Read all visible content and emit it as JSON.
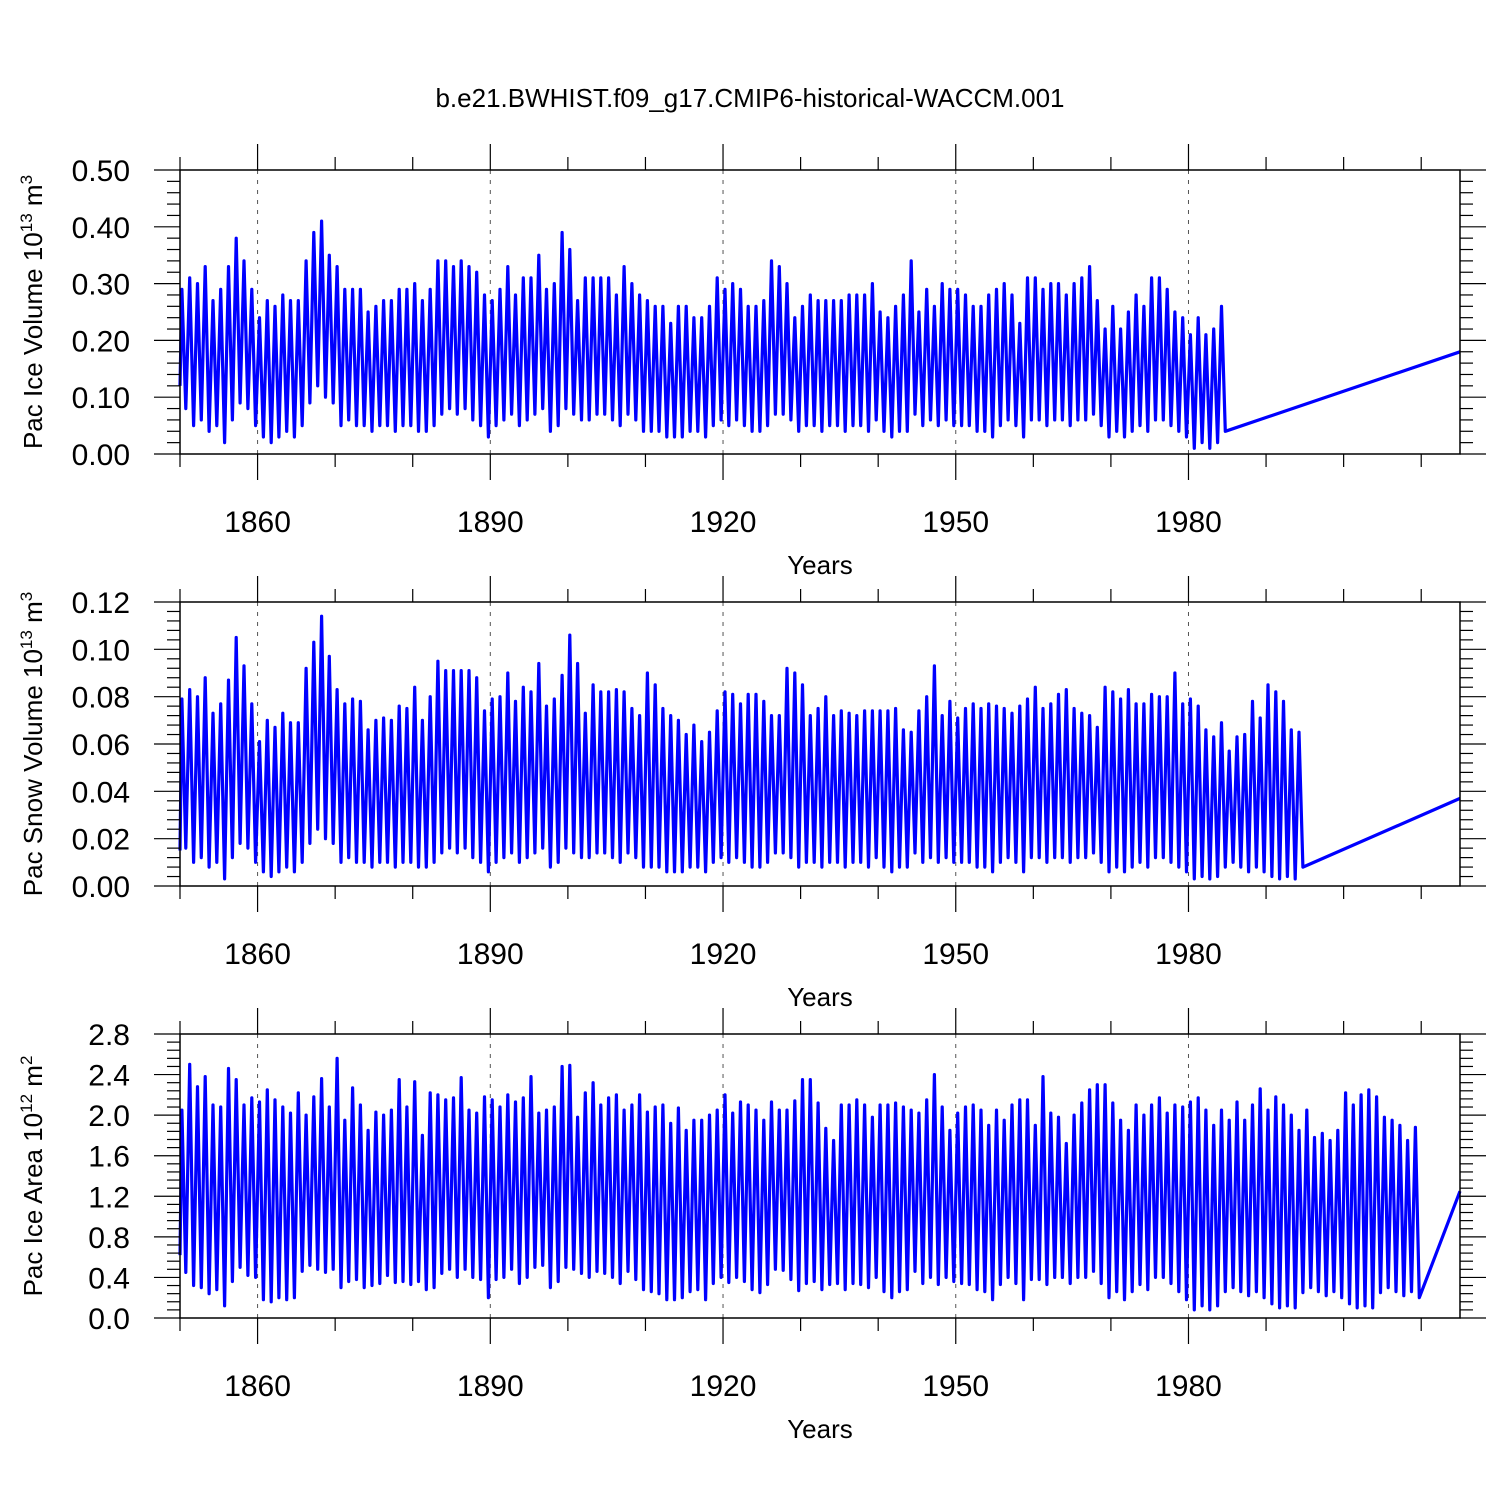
{
  "figure_title": "b.e21.BWHIST.f09_g17.CMIP6-historical-WACCM.001",
  "chart_data": [
    {
      "type": "line",
      "xlabel": "Years",
      "ylabel": {
        "pre": "Pac Ice Volume 10",
        "sup": "13",
        "mid": " m",
        "sup2": "3"
      },
      "xlim": [
        1850,
        2015
      ],
      "ylim": [
        0.0,
        0.5
      ],
      "x_ticks": [
        1860,
        1890,
        1920,
        1950,
        1980
      ],
      "x_tick_labels": [
        "1860",
        "1890",
        "1920",
        "1950",
        "1980"
      ],
      "y_ticks": [
        0.0,
        0.1,
        0.2,
        0.3,
        0.4,
        0.5
      ],
      "y_tick_labels": [
        "0.00",
        "0.10",
        "0.20",
        "0.30",
        "0.40",
        "0.50"
      ],
      "grid": "vertical dashed at major x ticks",
      "color": "#0000ff",
      "series": [
        {
          "x_start": 1850,
          "x_step": 1,
          "annual_max": [
            0.29,
            0.31,
            0.3,
            0.33,
            0.27,
            0.29,
            0.33,
            0.38,
            0.34,
            0.29,
            0.24,
            0.27,
            0.26,
            0.28,
            0.27,
            0.27,
            0.34,
            0.39,
            0.41,
            0.35,
            0.33,
            0.29,
            0.29,
            0.29,
            0.25,
            0.26,
            0.27,
            0.27,
            0.29,
            0.29,
            0.3,
            0.27,
            0.29,
            0.34,
            0.34,
            0.33,
            0.34,
            0.33,
            0.32,
            0.28,
            0.27,
            0.29,
            0.33,
            0.28,
            0.31,
            0.31,
            0.35,
            0.29,
            0.3,
            0.39,
            0.36,
            0.27,
            0.31,
            0.31,
            0.31,
            0.31,
            0.28,
            0.33,
            0.3,
            0.28,
            0.27,
            0.26,
            0.26,
            0.23,
            0.26,
            0.26,
            0.24,
            0.24,
            0.26,
            0.31,
            0.29,
            0.3,
            0.29,
            0.26,
            0.26,
            0.27,
            0.34,
            0.33,
            0.3,
            0.24,
            0.26,
            0.28,
            0.27,
            0.27,
            0.27,
            0.27,
            0.28,
            0.28,
            0.28,
            0.3,
            0.25,
            0.24,
            0.26,
            0.28,
            0.34,
            0.25,
            0.29,
            0.26,
            0.3,
            0.29,
            0.29,
            0.28,
            0.26,
            0.26,
            0.28,
            0.29,
            0.3,
            0.28,
            0.23,
            0.31,
            0.31,
            0.29,
            0.3,
            0.3,
            0.28,
            0.3,
            0.31,
            0.33,
            0.27,
            0.22,
            0.26,
            0.22,
            0.25,
            0.28,
            0.26,
            0.31,
            0.31,
            0.29,
            0.25,
            0.24,
            0.21,
            0.24,
            0.21,
            0.22,
            0.26
          ],
          "annual_min": [
            0.08,
            0.05,
            0.06,
            0.04,
            0.05,
            0.02,
            0.06,
            0.09,
            0.08,
            0.05,
            0.03,
            0.02,
            0.03,
            0.04,
            0.03,
            0.05,
            0.09,
            0.12,
            0.1,
            0.09,
            0.05,
            0.06,
            0.05,
            0.05,
            0.04,
            0.05,
            0.05,
            0.04,
            0.05,
            0.05,
            0.04,
            0.04,
            0.05,
            0.07,
            0.08,
            0.07,
            0.08,
            0.06,
            0.05,
            0.03,
            0.05,
            0.06,
            0.07,
            0.05,
            0.06,
            0.07,
            0.08,
            0.04,
            0.05,
            0.08,
            0.07,
            0.06,
            0.06,
            0.07,
            0.07,
            0.06,
            0.05,
            0.07,
            0.06,
            0.04,
            0.04,
            0.04,
            0.03,
            0.03,
            0.03,
            0.04,
            0.04,
            0.03,
            0.05,
            0.06,
            0.05,
            0.06,
            0.05,
            0.04,
            0.04,
            0.05,
            0.07,
            0.07,
            0.06,
            0.04,
            0.05,
            0.05,
            0.04,
            0.05,
            0.05,
            0.04,
            0.05,
            0.05,
            0.04,
            0.06,
            0.04,
            0.03,
            0.04,
            0.04,
            0.07,
            0.05,
            0.06,
            0.05,
            0.06,
            0.05,
            0.05,
            0.05,
            0.04,
            0.04,
            0.03,
            0.05,
            0.06,
            0.05,
            0.03,
            0.06,
            0.06,
            0.05,
            0.06,
            0.06,
            0.05,
            0.06,
            0.06,
            0.07,
            0.05,
            0.03,
            0.04,
            0.03,
            0.04,
            0.05,
            0.04,
            0.06,
            0.06,
            0.05,
            0.04,
            0.03,
            0.01,
            0.02,
            0.01,
            0.02,
            0.04
          ],
          "first_value": 0.12,
          "last_value": 0.18
        }
      ]
    },
    {
      "type": "line",
      "xlabel": "Years",
      "ylabel": {
        "pre": "Pac Snow Volume 10",
        "sup": "13",
        "mid": " m",
        "sup2": "3"
      },
      "xlim": [
        1850,
        2015
      ],
      "ylim": [
        0.0,
        0.12
      ],
      "x_ticks": [
        1860,
        1890,
        1920,
        1950,
        1980
      ],
      "x_tick_labels": [
        "1860",
        "1890",
        "1920",
        "1950",
        "1980"
      ],
      "y_ticks": [
        0.0,
        0.02,
        0.04,
        0.06,
        0.08,
        0.1,
        0.12
      ],
      "y_tick_labels": [
        "0.00",
        "0.02",
        "0.04",
        "0.06",
        "0.08",
        "0.10",
        "0.12"
      ],
      "grid": "vertical dashed at major x ticks",
      "color": "#0000ff",
      "series": [
        {
          "x_start": 1850,
          "x_step": 1,
          "annual_max": [
            0.079,
            0.083,
            0.08,
            0.088,
            0.073,
            0.077,
            0.087,
            0.105,
            0.093,
            0.077,
            0.061,
            0.07,
            0.067,
            0.073,
            0.069,
            0.069,
            0.092,
            0.103,
            0.114,
            0.097,
            0.083,
            0.077,
            0.079,
            0.078,
            0.066,
            0.07,
            0.071,
            0.07,
            0.076,
            0.075,
            0.084,
            0.07,
            0.08,
            0.095,
            0.091,
            0.091,
            0.091,
            0.091,
            0.088,
            0.074,
            0.079,
            0.08,
            0.09,
            0.078,
            0.084,
            0.082,
            0.094,
            0.076,
            0.079,
            0.089,
            0.106,
            0.094,
            0.073,
            0.085,
            0.082,
            0.082,
            0.083,
            0.082,
            0.075,
            0.072,
            0.09,
            0.085,
            0.075,
            0.072,
            0.07,
            0.064,
            0.068,
            0.061,
            0.065,
            0.074,
            0.082,
            0.081,
            0.077,
            0.081,
            0.081,
            0.078,
            0.072,
            0.072,
            0.092,
            0.09,
            0.085,
            0.072,
            0.075,
            0.08,
            0.072,
            0.074,
            0.073,
            0.072,
            0.074,
            0.074,
            0.074,
            0.074,
            0.075,
            0.066,
            0.065,
            0.074,
            0.08,
            0.093,
            0.072,
            0.078,
            0.071,
            0.075,
            0.077,
            0.075,
            0.077,
            0.076,
            0.075,
            0.073,
            0.076,
            0.079,
            0.084,
            0.075,
            0.077,
            0.081,
            0.083,
            0.075,
            0.073,
            0.072,
            0.067,
            0.084,
            0.082,
            0.079,
            0.083,
            0.077,
            0.077,
            0.081,
            0.08,
            0.08,
            0.09,
            0.077,
            0.079,
            0.076,
            0.066,
            0.063,
            0.069,
            0.057,
            0.063,
            0.064,
            0.078,
            0.071,
            0.085,
            0.082,
            0.078,
            0.066,
            0.065,
            0.054,
            0.065,
            0.054,
            0.069
          ],
          "annual_min": [
            0.016,
            0.01,
            0.012,
            0.008,
            0.01,
            0.003,
            0.012,
            0.018,
            0.016,
            0.01,
            0.006,
            0.004,
            0.006,
            0.008,
            0.006,
            0.01,
            0.018,
            0.024,
            0.02,
            0.018,
            0.01,
            0.012,
            0.01,
            0.01,
            0.008,
            0.01,
            0.01,
            0.008,
            0.01,
            0.01,
            0.008,
            0.008,
            0.01,
            0.014,
            0.016,
            0.014,
            0.016,
            0.012,
            0.01,
            0.006,
            0.01,
            0.012,
            0.014,
            0.01,
            0.012,
            0.014,
            0.016,
            0.008,
            0.01,
            0.016,
            0.014,
            0.012,
            0.012,
            0.014,
            0.014,
            0.012,
            0.01,
            0.014,
            0.012,
            0.008,
            0.008,
            0.008,
            0.006,
            0.006,
            0.006,
            0.008,
            0.008,
            0.006,
            0.01,
            0.012,
            0.01,
            0.012,
            0.01,
            0.008,
            0.008,
            0.01,
            0.014,
            0.014,
            0.012,
            0.008,
            0.01,
            0.01,
            0.008,
            0.01,
            0.01,
            0.008,
            0.01,
            0.01,
            0.008,
            0.012,
            0.008,
            0.006,
            0.008,
            0.008,
            0.014,
            0.01,
            0.012,
            0.01,
            0.012,
            0.01,
            0.01,
            0.01,
            0.008,
            0.008,
            0.006,
            0.01,
            0.012,
            0.01,
            0.006,
            0.012,
            0.012,
            0.01,
            0.012,
            0.012,
            0.01,
            0.012,
            0.012,
            0.014,
            0.01,
            0.006,
            0.008,
            0.006,
            0.008,
            0.01,
            0.008,
            0.012,
            0.012,
            0.01,
            0.008,
            0.006,
            0.003,
            0.004,
            0.003,
            0.004,
            0.008,
            0.01,
            0.008,
            0.006,
            0.008,
            0.006,
            0.004,
            0.003,
            0.004,
            0.003,
            0.008
          ],
          "first_value": 0.015,
          "last_value": 0.037
        }
      ]
    },
    {
      "type": "line",
      "xlabel": "Years",
      "ylabel": {
        "pre": "Pac Ice Area 10",
        "sup": "12",
        "mid": " m",
        "sup2": "2"
      },
      "xlim": [
        1850,
        2015
      ],
      "ylim": [
        0.0,
        2.8
      ],
      "x_ticks": [
        1860,
        1890,
        1920,
        1950,
        1980
      ],
      "x_tick_labels": [
        "1860",
        "1890",
        "1920",
        "1950",
        "1980"
      ],
      "y_ticks": [
        0.0,
        0.4,
        0.8,
        1.2,
        1.6,
        2.0,
        2.4,
        2.8
      ],
      "y_tick_labels": [
        "0.0",
        "0.4",
        "0.8",
        "1.2",
        "1.6",
        "2.0",
        "2.4",
        "2.8"
      ],
      "grid": "vertical dashed at major x ticks",
      "color": "#0000ff",
      "series": [
        {
          "x_start": 1850,
          "x_step": 1,
          "annual_max": [
            2.05,
            2.5,
            2.28,
            2.38,
            2.1,
            2.08,
            2.46,
            2.35,
            2.1,
            2.17,
            2.13,
            2.25,
            2.15,
            2.08,
            2.02,
            2.22,
            2.0,
            2.18,
            2.36,
            2.08,
            2.56,
            1.95,
            2.27,
            2.1,
            1.85,
            2.03,
            2.0,
            2.05,
            2.35,
            2.08,
            2.33,
            1.8,
            2.22,
            2.2,
            2.15,
            2.17,
            2.37,
            2.05,
            2.02,
            2.18,
            2.15,
            2.08,
            2.2,
            2.13,
            2.17,
            2.38,
            2.02,
            2.05,
            2.08,
            2.48,
            2.49,
            1.98,
            2.22,
            2.32,
            2.1,
            2.17,
            2.2,
            2.05,
            2.1,
            2.2,
            2.03,
            2.08,
            2.1,
            1.92,
            2.07,
            1.85,
            1.95,
            1.95,
            2.0,
            2.05,
            2.2,
            2.02,
            2.13,
            2.1,
            2.05,
            1.95,
            2.13,
            2.05,
            2.05,
            2.14,
            2.35,
            2.35,
            2.12,
            1.87,
            1.75,
            2.1,
            2.1,
            2.15,
            2.1,
            1.98,
            2.1,
            2.1,
            2.12,
            2.08,
            2.05,
            2.02,
            2.15,
            2.4,
            2.08,
            1.85,
            2.02,
            2.08,
            2.1,
            2.05,
            1.9,
            2.05,
            1.95,
            2.1,
            2.15,
            2.15,
            1.9,
            2.38,
            2.02,
            1.98,
            1.72,
            2.0,
            2.12,
            2.25,
            2.3,
            2.3,
            2.12,
            1.95,
            1.85,
            2.1,
            2.0,
            2.1,
            2.17,
            2.02,
            2.1,
            2.08,
            2.13,
            2.17,
            2.05,
            1.9,
            2.05,
            1.95,
            2.13,
            1.95,
            2.1,
            2.26,
            2.05,
            2.18,
            2.1,
            2.0,
            1.85,
            2.05,
            1.78,
            1.82,
            1.75,
            1.85,
            2.22,
            2.1,
            2.2,
            2.25,
            2.18,
            1.98,
            1.95,
            1.9,
            1.75,
            1.88,
            2.03
          ],
          "annual_min": [
            0.45,
            0.32,
            0.3,
            0.24,
            0.28,
            0.12,
            0.36,
            0.5,
            0.42,
            0.4,
            0.18,
            0.16,
            0.2,
            0.18,
            0.2,
            0.46,
            0.52,
            0.48,
            0.45,
            0.48,
            0.3,
            0.36,
            0.38,
            0.3,
            0.32,
            0.34,
            0.42,
            0.35,
            0.36,
            0.33,
            0.36,
            0.28,
            0.3,
            0.44,
            0.48,
            0.4,
            0.48,
            0.4,
            0.38,
            0.2,
            0.38,
            0.4,
            0.48,
            0.34,
            0.4,
            0.5,
            0.52,
            0.3,
            0.36,
            0.5,
            0.48,
            0.44,
            0.4,
            0.46,
            0.44,
            0.4,
            0.34,
            0.46,
            0.38,
            0.28,
            0.26,
            0.24,
            0.18,
            0.18,
            0.2,
            0.26,
            0.28,
            0.18,
            0.34,
            0.4,
            0.35,
            0.4,
            0.36,
            0.28,
            0.25,
            0.33,
            0.48,
            0.47,
            0.38,
            0.27,
            0.34,
            0.36,
            0.28,
            0.33,
            0.34,
            0.28,
            0.34,
            0.33,
            0.3,
            0.4,
            0.26,
            0.2,
            0.26,
            0.28,
            0.46,
            0.34,
            0.4,
            0.33,
            0.4,
            0.36,
            0.34,
            0.33,
            0.28,
            0.26,
            0.18,
            0.33,
            0.4,
            0.34,
            0.18,
            0.38,
            0.38,
            0.33,
            0.4,
            0.4,
            0.34,
            0.4,
            0.4,
            0.46,
            0.34,
            0.2,
            0.26,
            0.18,
            0.26,
            0.33,
            0.28,
            0.4,
            0.4,
            0.34,
            0.26,
            0.18,
            0.08,
            0.12,
            0.08,
            0.12,
            0.26,
            0.3,
            0.26,
            0.22,
            0.26,
            0.2,
            0.14,
            0.1,
            0.12,
            0.1,
            0.25,
            0.3,
            0.26,
            0.22,
            0.26,
            0.2,
            0.14,
            0.1,
            0.12,
            0.1,
            0.25,
            0.3,
            0.26,
            0.22,
            0.26,
            0.2
          ],
          "first_value": 0.62,
          "last_value": 1.25
        }
      ]
    }
  ]
}
